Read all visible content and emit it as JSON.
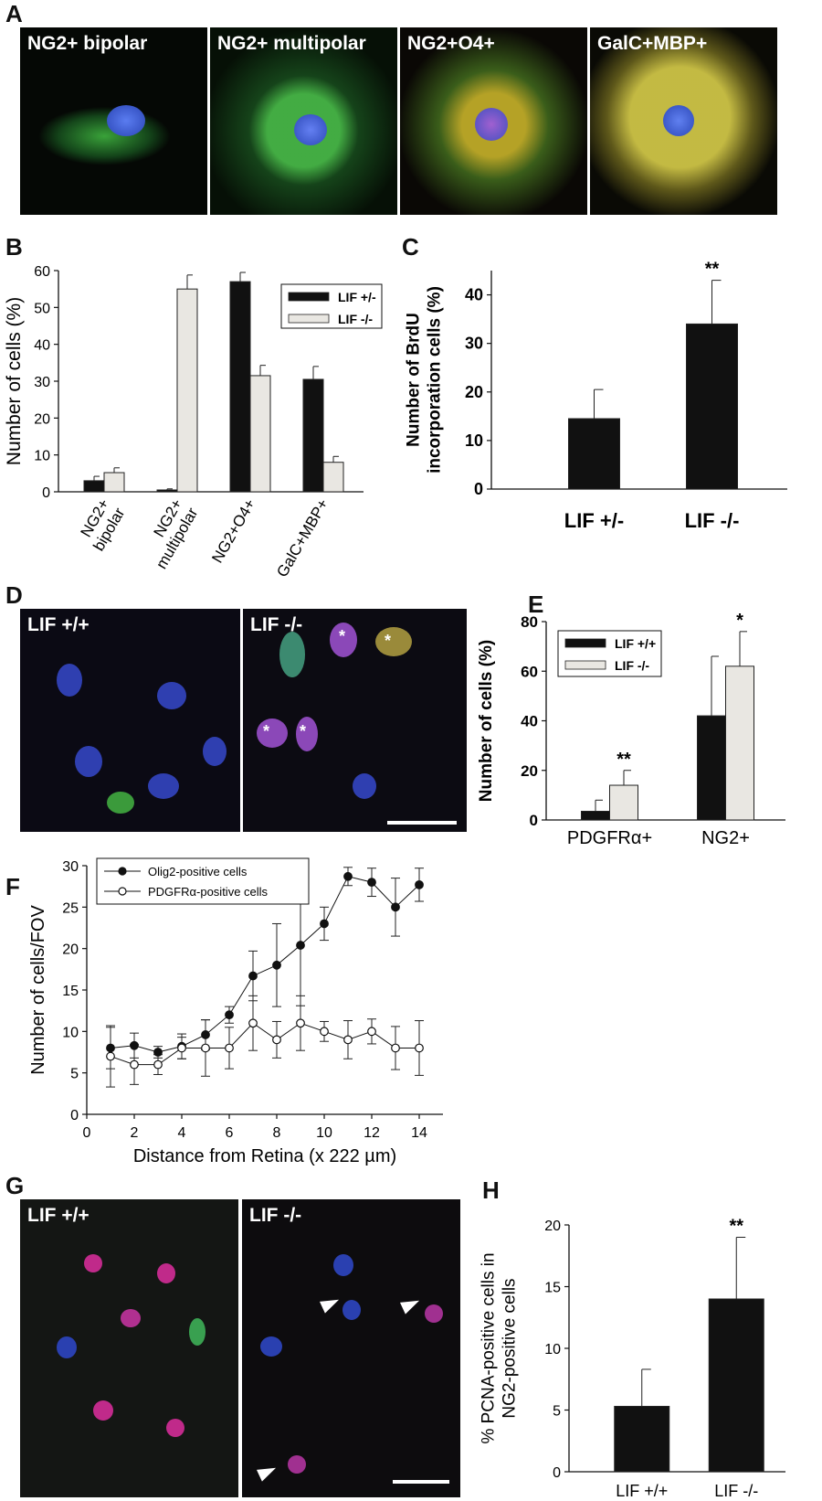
{
  "panel_letters": {
    "A": "A",
    "B": "B",
    "C": "C",
    "D": "D",
    "E": "E",
    "F": "F",
    "G": "G",
    "H": "H"
  },
  "panel_a": {
    "images": [
      {
        "label": "NG2+ bipolar",
        "fluorescence": "green cell body with blue nucleus"
      },
      {
        "label": "NG2+ multipolar",
        "fluorescence": "green branched cell, blue nucleus"
      },
      {
        "label": "NG2+O4+",
        "fluorescence": "green/red overlapping processes"
      },
      {
        "label": "GalC+MBP+",
        "fluorescence": "yellow membranous cell"
      }
    ]
  },
  "panel_d": {
    "left_label": "LIF +/+",
    "right_label": "LIF -/-",
    "asterisk": "*"
  },
  "panel_g": {
    "left_label": "LIF +/+",
    "right_label": "LIF -/-"
  },
  "colors": {
    "black_bar": "#111111",
    "light_bar": "#e9e7e2",
    "bar_edge": "#222222"
  },
  "chart_data": [
    {
      "panel": "B",
      "type": "bar",
      "categories": [
        "NG2+\nbipolar",
        "NG2+\nmultipolar",
        "NG2+O4+",
        "GalC+MBP+"
      ],
      "series": [
        {
          "name": "LIF +/-",
          "color": "#111111",
          "values": [
            3,
            0.5,
            57,
            30.5
          ],
          "errors": [
            1.2,
            0.3,
            2.5,
            3.5
          ]
        },
        {
          "name": "LIF -/-",
          "color": "#e9e7e2",
          "values": [
            5.2,
            55,
            31.5,
            8
          ],
          "errors": [
            1.3,
            3.8,
            2.8,
            1.6
          ]
        }
      ],
      "ylabel": "Number of cells (%)",
      "ylim": [
        0,
        60
      ],
      "yticks": [
        0,
        10,
        20,
        30,
        40,
        50,
        60
      ],
      "legend": "top-right"
    },
    {
      "panel": "C",
      "type": "bar",
      "categories": [
        "LIF +/-",
        "LIF -/-"
      ],
      "series": [
        {
          "color": "#111111",
          "values": [
            14.5,
            34
          ],
          "errors": [
            6,
            9
          ]
        }
      ],
      "annotations": [
        "",
        "**"
      ],
      "ylabel": "Number of BrdU\nincorporation cells (%)",
      "ylim": [
        0,
        45
      ],
      "yticks": [
        0,
        10,
        20,
        30,
        40
      ]
    },
    {
      "panel": "E",
      "type": "bar",
      "categories": [
        "PDGFRα+",
        "NG2+"
      ],
      "series": [
        {
          "name": "LIF +/+",
          "color": "#111111",
          "values": [
            3.5,
            42
          ],
          "errors": [
            4.5,
            24
          ]
        },
        {
          "name": "LIF -/-",
          "color": "#e9e7e2",
          "values": [
            14,
            62
          ],
          "errors": [
            6,
            14
          ]
        }
      ],
      "annotations": [
        "**",
        "*"
      ],
      "ylabel": "Number of cells (%)",
      "ylim": [
        0,
        80
      ],
      "yticks": [
        0,
        20,
        40,
        60,
        80
      ],
      "legend": "top-left"
    },
    {
      "panel": "F",
      "type": "line",
      "x": [
        1,
        2,
        3,
        4,
        5,
        6,
        7,
        8,
        9,
        10,
        11,
        12,
        13,
        14
      ],
      "series": [
        {
          "name": "Olig2-positive cells",
          "marker": "filled",
          "values": [
            8,
            8.3,
            7.5,
            8.2,
            9.6,
            12,
            16.7,
            18,
            20.4,
            23,
            28.7,
            28,
            25,
            27.7
          ],
          "errors": [
            2.5,
            1.5,
            0.7,
            1.5,
            1.8,
            1,
            3,
            5,
            7.3,
            2,
            1.1,
            1.7,
            3.5,
            2
          ]
        },
        {
          "name": "PDGFRα-positive cells",
          "marker": "open",
          "values": [
            7,
            6,
            6,
            8,
            8,
            8,
            11,
            9,
            11,
            10,
            9,
            10,
            8,
            8
          ],
          "errors": [
            3.7,
            2.4,
            1.2,
            1.3,
            3.4,
            2.5,
            3.3,
            2.2,
            3.3,
            1.2,
            2.3,
            1.5,
            2.6,
            3.3
          ]
        }
      ],
      "xlabel": "Distance from Retina (x 222 µm)",
      "ylabel": "Number of cells/FOV",
      "xlim": [
        0,
        15
      ],
      "ylim": [
        0,
        30
      ],
      "xticks": [
        0,
        2,
        4,
        6,
        8,
        10,
        12,
        14
      ],
      "yticks": [
        0,
        5,
        10,
        15,
        20,
        25,
        30
      ],
      "legend": "top-left"
    },
    {
      "panel": "H",
      "type": "bar",
      "categories": [
        "LIF +/+",
        "LIF -/-"
      ],
      "series": [
        {
          "color": "#111111",
          "values": [
            5.3,
            14
          ],
          "errors": [
            3,
            5
          ]
        }
      ],
      "annotations": [
        "",
        "**"
      ],
      "ylabel": "% PCNA-positive cells in\nNG2-positive cells",
      "ylim": [
        0,
        20
      ],
      "yticks": [
        0,
        5,
        10,
        15,
        20
      ]
    }
  ]
}
